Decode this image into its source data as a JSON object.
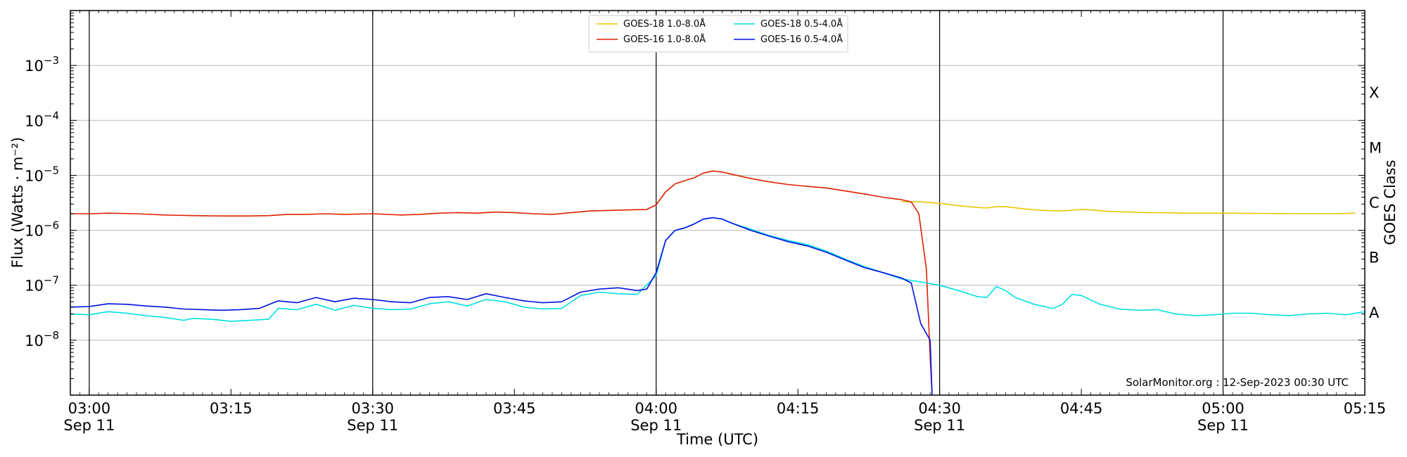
{
  "chart_data": {
    "type": "line",
    "xlabel": "Time (UTC)",
    "ylabel": "Flux (Watts · m⁻²)",
    "y2label": "GOES Class",
    "scale_y": "log",
    "ylim": [
      1e-09,
      0.01
    ],
    "xlim": [
      "2023-09-11 02:58",
      "2023-09-11 05:15"
    ],
    "grid": "horizontal",
    "legend_position": "top-center",
    "credit": "SolarMonitor.org : 12-Sep-2023 00:30 UTC",
    "x_ticks": [
      {
        "time": "03:00",
        "line1": "03:00",
        "line2": "Sep 11"
      },
      {
        "time": "03:15",
        "line1": "03:15",
        "line2": ""
      },
      {
        "time": "03:30",
        "line1": "03:30",
        "line2": "Sep 11"
      },
      {
        "time": "03:45",
        "line1": "03:45",
        "line2": ""
      },
      {
        "time": "04:00",
        "line1": "04:00",
        "line2": "Sep 11"
      },
      {
        "time": "04:15",
        "line1": "04:15",
        "line2": ""
      },
      {
        "time": "04:30",
        "line1": "04:30",
        "line2": "Sep 11"
      },
      {
        "time": "04:45",
        "line1": "04:45",
        "line2": ""
      },
      {
        "time": "05:00",
        "line1": "05:00",
        "line2": "Sep 11"
      },
      {
        "time": "05:15",
        "line1": "05:15",
        "line2": ""
      }
    ],
    "vertical_markers": [
      "03:00",
      "03:30",
      "04:00",
      "04:30",
      "05:00"
    ],
    "y_ticks": [
      {
        "value": 1e-08,
        "base": "10",
        "exp": "−8"
      },
      {
        "value": 1e-07,
        "base": "10",
        "exp": "−7"
      },
      {
        "value": 1e-06,
        "base": "10",
        "exp": "−6"
      },
      {
        "value": 1e-05,
        "base": "10",
        "exp": "−5"
      },
      {
        "value": 0.0001,
        "base": "10",
        "exp": "−4"
      },
      {
        "value": 0.001,
        "base": "10",
        "exp": "−3"
      }
    ],
    "goes_classes": [
      {
        "label": "A",
        "value": 3.16e-08
      },
      {
        "label": "B",
        "value": 3.16e-07
      },
      {
        "label": "C",
        "value": 3.16e-06
      },
      {
        "label": "M",
        "value": 3.16e-05
      },
      {
        "label": "X",
        "value": 0.000316
      }
    ],
    "series": [
      {
        "name": "GOES-18 1.0-8.0Å",
        "color": "#e8c800",
        "points": [
          [
            "04:26",
            3.3e-06
          ],
          [
            "04:28",
            3.3e-06
          ],
          [
            "04:30",
            3.1e-06
          ],
          [
            "04:32",
            2.8e-06
          ],
          [
            "04:34",
            2.6e-06
          ],
          [
            "04:35",
            2.55e-06
          ],
          [
            "04:36",
            2.7e-06
          ],
          [
            "04:37",
            2.7e-06
          ],
          [
            "04:39",
            2.45e-06
          ],
          [
            "04:41",
            2.3e-06
          ],
          [
            "04:43",
            2.25e-06
          ],
          [
            "04:45",
            2.4e-06
          ],
          [
            "04:46",
            2.35e-06
          ],
          [
            "04:48",
            2.2e-06
          ],
          [
            "04:50",
            2.15e-06
          ],
          [
            "04:52",
            2.1e-06
          ],
          [
            "04:54",
            2.08e-06
          ],
          [
            "04:56",
            2.05e-06
          ],
          [
            "04:58",
            2.05e-06
          ],
          [
            "05:00",
            2.05e-06
          ],
          [
            "05:02",
            2.04e-06
          ],
          [
            "05:04",
            2.03e-06
          ],
          [
            "05:06",
            2.02e-06
          ],
          [
            "05:08",
            2e-06
          ],
          [
            "05:10",
            2e-06
          ],
          [
            "05:12",
            2e-06
          ],
          [
            "05:14",
            2.05e-06
          ]
        ]
      },
      {
        "name": "GOES-16 1.0-8.0Å",
        "color": "#e02000",
        "points": [
          [
            "02:58",
            2e-06
          ],
          [
            "03:00",
            2e-06
          ],
          [
            "03:02",
            2.05e-06
          ],
          [
            "03:05",
            2e-06
          ],
          [
            "03:08",
            1.9e-06
          ],
          [
            "03:11",
            1.85e-06
          ],
          [
            "03:14",
            1.82e-06
          ],
          [
            "03:17",
            1.82e-06
          ],
          [
            "03:19",
            1.85e-06
          ],
          [
            "03:21",
            1.95e-06
          ],
          [
            "03:23",
            1.95e-06
          ],
          [
            "03:25",
            2e-06
          ],
          [
            "03:27",
            1.95e-06
          ],
          [
            "03:30",
            2e-06
          ],
          [
            "03:33",
            1.9e-06
          ],
          [
            "03:35",
            1.95e-06
          ],
          [
            "03:37",
            2.05e-06
          ],
          [
            "03:39",
            2.1e-06
          ],
          [
            "03:41",
            2.05e-06
          ],
          [
            "03:43",
            2.15e-06
          ],
          [
            "03:45",
            2.1e-06
          ],
          [
            "03:47",
            2e-06
          ],
          [
            "03:49",
            1.95e-06
          ],
          [
            "03:51",
            2.1e-06
          ],
          [
            "03:53",
            2.25e-06
          ],
          [
            "03:55",
            2.3e-06
          ],
          [
            "03:57",
            2.35e-06
          ],
          [
            "03:59",
            2.4e-06
          ],
          [
            "04:00",
            2.9e-06
          ],
          [
            "04:01",
            5e-06
          ],
          [
            "04:02",
            7e-06
          ],
          [
            "04:03",
            8e-06
          ],
          [
            "04:04",
            9e-06
          ],
          [
            "04:05",
            1.1e-05
          ],
          [
            "04:06",
            1.2e-05
          ],
          [
            "04:07",
            1.15e-05
          ],
          [
            "04:08",
            1.05e-05
          ],
          [
            "04:10",
            8.8e-06
          ],
          [
            "04:12",
            7.6e-06
          ],
          [
            "04:14",
            6.8e-06
          ],
          [
            "04:16",
            6.3e-06
          ],
          [
            "04:18",
            5.9e-06
          ],
          [
            "04:20",
            5.2e-06
          ],
          [
            "04:22",
            4.6e-06
          ],
          [
            "04:24",
            4e-06
          ],
          [
            "04:26",
            3.6e-06
          ],
          [
            "04:27",
            3.3e-06
          ],
          [
            "04:27.8",
            2e-06
          ],
          [
            "04:28.6",
            2e-07
          ],
          [
            "04:29",
            5e-09
          ],
          [
            "04:29.2",
            1e-09
          ]
        ]
      },
      {
        "name": "GOES-18 0.5-4.0Å",
        "color": "#00e0e0",
        "points": [
          [
            "02:58",
            3e-08
          ],
          [
            "03:00",
            2.9e-08
          ],
          [
            "03:02",
            3.3e-08
          ],
          [
            "03:04",
            3.1e-08
          ],
          [
            "03:06",
            2.8e-08
          ],
          [
            "03:08",
            2.6e-08
          ],
          [
            "03:10",
            2.3e-08
          ],
          [
            "03:11",
            2.5e-08
          ],
          [
            "03:13",
            2.4e-08
          ],
          [
            "03:15",
            2.2e-08
          ],
          [
            "03:17",
            2.3e-08
          ],
          [
            "03:19",
            2.4e-08
          ],
          [
            "03:20",
            3.8e-08
          ],
          [
            "03:22",
            3.6e-08
          ],
          [
            "03:24",
            4.5e-08
          ],
          [
            "03:25",
            4e-08
          ],
          [
            "03:26",
            3.5e-08
          ],
          [
            "03:28",
            4.3e-08
          ],
          [
            "03:30",
            3.8e-08
          ],
          [
            "03:32",
            3.6e-08
          ],
          [
            "03:34",
            3.7e-08
          ],
          [
            "03:36",
            4.6e-08
          ],
          [
            "03:38",
            5e-08
          ],
          [
            "03:40",
            4.2e-08
          ],
          [
            "03:42",
            5.5e-08
          ],
          [
            "03:44",
            5e-08
          ],
          [
            "03:46",
            4e-08
          ],
          [
            "03:48",
            3.7e-08
          ],
          [
            "03:50",
            3.8e-08
          ],
          [
            "03:52",
            6.5e-08
          ],
          [
            "03:54",
            7.5e-08
          ],
          [
            "03:56",
            7e-08
          ],
          [
            "03:58",
            6.8e-08
          ],
          [
            "04:00",
            1.5e-07
          ],
          [
            "04:01",
            6.5e-07
          ],
          [
            "04:02",
            1e-06
          ],
          [
            "04:03",
            1.1e-06
          ],
          [
            "04:04",
            1.3e-06
          ],
          [
            "04:05",
            1.6e-06
          ],
          [
            "04:06",
            1.7e-06
          ],
          [
            "04:07",
            1.6e-06
          ],
          [
            "04:08",
            1.35e-06
          ],
          [
            "04:10",
            1.05e-06
          ],
          [
            "04:12",
            8e-07
          ],
          [
            "04:14",
            6.5e-07
          ],
          [
            "04:16",
            5.5e-07
          ],
          [
            "04:18",
            4.2e-07
          ],
          [
            "04:20",
            3e-07
          ],
          [
            "04:22",
            2.2e-07
          ],
          [
            "04:24",
            1.7e-07
          ],
          [
            "04:26",
            1.3e-07
          ],
          [
            "04:28",
            1.15e-07
          ],
          [
            "04:30",
            1e-07
          ],
          [
            "04:32",
            8e-08
          ],
          [
            "04:34",
            6.2e-08
          ],
          [
            "04:35",
            6e-08
          ],
          [
            "04:36",
            9.5e-08
          ],
          [
            "04:37",
            8e-08
          ],
          [
            "04:38",
            6e-08
          ],
          [
            "04:40",
            4.5e-08
          ],
          [
            "04:42",
            3.8e-08
          ],
          [
            "04:43",
            4.5e-08
          ],
          [
            "04:44",
            6.8e-08
          ],
          [
            "04:45",
            6.5e-08
          ],
          [
            "04:47",
            4.5e-08
          ],
          [
            "04:49",
            3.7e-08
          ],
          [
            "04:51",
            3.5e-08
          ],
          [
            "04:53",
            3.6e-08
          ],
          [
            "04:55",
            3e-08
          ],
          [
            "04:57",
            2.8e-08
          ],
          [
            "04:59",
            2.9e-08
          ],
          [
            "05:01",
            3.1e-08
          ],
          [
            "05:03",
            3.1e-08
          ],
          [
            "05:05",
            2.9e-08
          ],
          [
            "05:07",
            2.8e-08
          ],
          [
            "05:09",
            3e-08
          ],
          [
            "05:11",
            3.1e-08
          ],
          [
            "05:13",
            2.9e-08
          ],
          [
            "05:15",
            3.3e-08
          ]
        ]
      },
      {
        "name": "GOES-16 0.5-4.0Å",
        "color": "#0010e0",
        "points": [
          [
            "02:58",
            4e-08
          ],
          [
            "03:00",
            4.1e-08
          ],
          [
            "03:02",
            4.6e-08
          ],
          [
            "03:04",
            4.5e-08
          ],
          [
            "03:06",
            4.2e-08
          ],
          [
            "03:08",
            4e-08
          ],
          [
            "03:10",
            3.7e-08
          ],
          [
            "03:12",
            3.6e-08
          ],
          [
            "03:14",
            3.5e-08
          ],
          [
            "03:16",
            3.6e-08
          ],
          [
            "03:18",
            3.8e-08
          ],
          [
            "03:20",
            5.2e-08
          ],
          [
            "03:22",
            4.8e-08
          ],
          [
            "03:24",
            6e-08
          ],
          [
            "03:26",
            5e-08
          ],
          [
            "03:28",
            5.8e-08
          ],
          [
            "03:30",
            5.5e-08
          ],
          [
            "03:32",
            5e-08
          ],
          [
            "03:34",
            4.8e-08
          ],
          [
            "03:36",
            6e-08
          ],
          [
            "03:38",
            6.2e-08
          ],
          [
            "03:40",
            5.5e-08
          ],
          [
            "03:42",
            7e-08
          ],
          [
            "03:44",
            6e-08
          ],
          [
            "03:46",
            5.2e-08
          ],
          [
            "03:48",
            4.8e-08
          ],
          [
            "03:50",
            5e-08
          ],
          [
            "03:52",
            7.5e-08
          ],
          [
            "03:54",
            8.5e-08
          ],
          [
            "03:56",
            9e-08
          ],
          [
            "03:58",
            8e-08
          ],
          [
            "03:59",
            8.5e-08
          ],
          [
            "04:00",
            1.7e-07
          ],
          [
            "04:01",
            6.5e-07
          ],
          [
            "04:02",
            1e-06
          ],
          [
            "04:03",
            1.1e-06
          ],
          [
            "04:04",
            1.3e-06
          ],
          [
            "04:05",
            1.6e-06
          ],
          [
            "04:06",
            1.7e-06
          ],
          [
            "04:07",
            1.6e-06
          ],
          [
            "04:08",
            1.35e-06
          ],
          [
            "04:10",
            1e-06
          ],
          [
            "04:12",
            7.8e-07
          ],
          [
            "04:14",
            6.2e-07
          ],
          [
            "04:16",
            5.2e-07
          ],
          [
            "04:18",
            4e-07
          ],
          [
            "04:20",
            2.9e-07
          ],
          [
            "04:22",
            2.1e-07
          ],
          [
            "04:24",
            1.7e-07
          ],
          [
            "04:26",
            1.35e-07
          ],
          [
            "04:27",
            1.1e-07
          ],
          [
            "04:28",
            2e-08
          ],
          [
            "04:29",
            1e-08
          ],
          [
            "04:29.2",
            1e-09
          ]
        ]
      }
    ]
  }
}
